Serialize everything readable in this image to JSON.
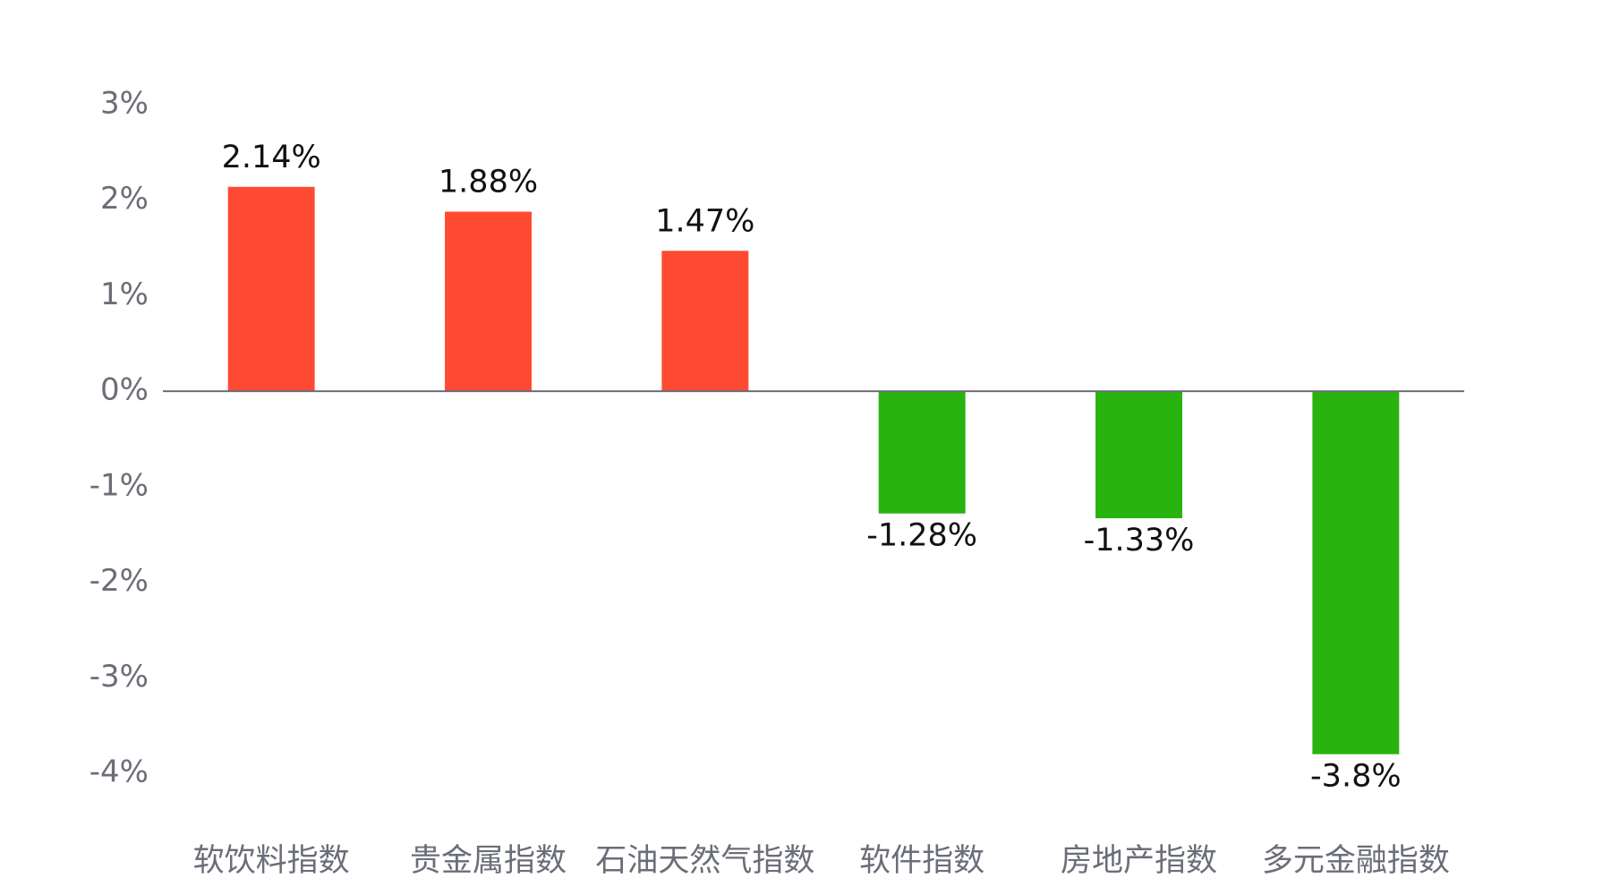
{
  "chart_data": {
    "type": "bar",
    "categories": [
      "软饮料指数",
      "贵金属指数",
      "石油天然气指数",
      "软件指数",
      "房地产指数",
      "多元金融指数"
    ],
    "values": [
      2.14,
      1.88,
      1.47,
      -1.28,
      -1.33,
      -3.8
    ],
    "value_labels": [
      "2.14%",
      "1.88%",
      "1.47%",
      "-1.28%",
      "-1.33%",
      "-3.8%"
    ],
    "colors": [
      "#ff4a33",
      "#ff4a33",
      "#ff4a33",
      "#29b30e",
      "#29b30e",
      "#29b30e"
    ],
    "ylim": [
      -4,
      3
    ],
    "yticks": [
      {
        "value": 3,
        "label": "3%"
      },
      {
        "value": 2,
        "label": "2%"
      },
      {
        "value": 1,
        "label": "1%"
      },
      {
        "value": 0,
        "label": "0%"
      },
      {
        "value": -1,
        "label": "-1%"
      },
      {
        "value": -2,
        "label": "-2%"
      },
      {
        "value": -3,
        "label": "-3%"
      },
      {
        "value": -4,
        "label": "-4%"
      }
    ],
    "grid": false
  }
}
